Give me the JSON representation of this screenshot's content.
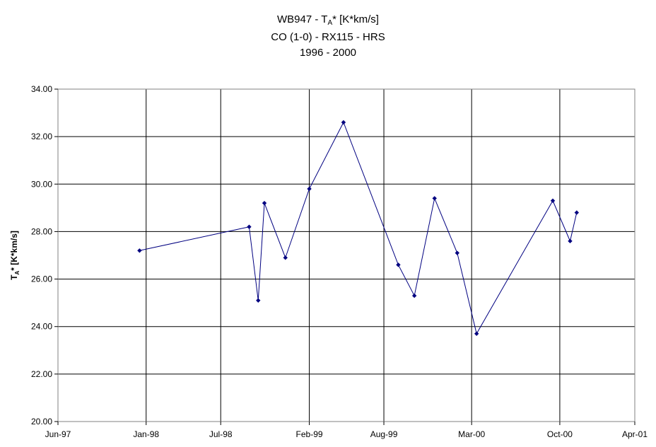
{
  "chart_data": {
    "type": "line",
    "title": {
      "line1_prefix": "WB947 - T",
      "line1_sub": "A",
      "line1_suffix": "* [K*km/s]",
      "line2": "CO (1-0) - RX115 - HRS",
      "line3": "1996 - 2000"
    },
    "ylabel": {
      "prefix": "T",
      "sub": "A",
      "suffix": "* [K*km/s]"
    },
    "xlabel": "",
    "xlim": [
      "1997-06-01",
      "2001-04-01"
    ],
    "ylim": [
      20,
      34
    ],
    "y_ticks": [
      20,
      22,
      24,
      26,
      28,
      30,
      32,
      34
    ],
    "y_tick_labels": [
      "20.00",
      "22.00",
      "24.00",
      "26.00",
      "28.00",
      "30.00",
      "32.00",
      "34.00"
    ],
    "x_ticks": [
      "1997-06-01",
      "1998-01-01",
      "1998-07-01",
      "1999-02-01",
      "1999-08-01",
      "2000-03-01",
      "2000-10-01",
      "2001-04-01"
    ],
    "x_tick_labels": [
      "Jun-97",
      "Jan-98",
      "Jul-98",
      "Feb-99",
      "Aug-99",
      "Mar-00",
      "Oct-00",
      "Apr-01"
    ],
    "grid": true,
    "legend": "none",
    "series": [
      {
        "color": "#000080",
        "marker": "diamond",
        "points": [
          {
            "x": "1997-12-16",
            "y": 27.2
          },
          {
            "x": "1998-09-08",
            "y": 28.2
          },
          {
            "x": "1998-09-30",
            "y": 25.1
          },
          {
            "x": "1998-10-15",
            "y": 29.2
          },
          {
            "x": "1998-12-05",
            "y": 26.9
          },
          {
            "x": "1999-02-01",
            "y": 29.8
          },
          {
            "x": "1999-04-25",
            "y": 32.6
          },
          {
            "x": "1999-09-05",
            "y": 26.6
          },
          {
            "x": "1999-10-14",
            "y": 25.3
          },
          {
            "x": "1999-12-02",
            "y": 29.4
          },
          {
            "x": "2000-01-26",
            "y": 27.1
          },
          {
            "x": "2000-03-13",
            "y": 23.7
          },
          {
            "x": "2000-09-14",
            "y": 29.3
          },
          {
            "x": "2000-10-26",
            "y": 27.6
          },
          {
            "x": "2000-11-11",
            "y": 28.8
          }
        ]
      }
    ]
  }
}
